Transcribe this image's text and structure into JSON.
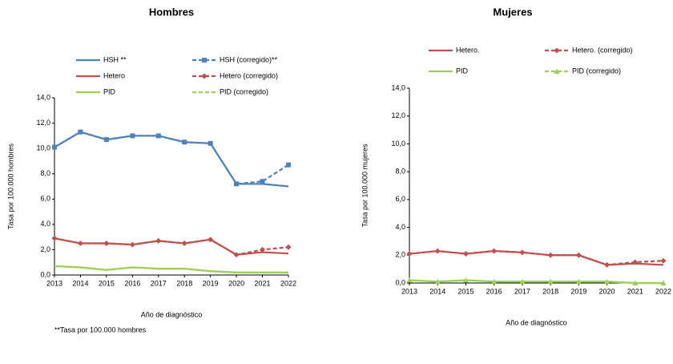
{
  "chart_data": [
    {
      "type": "line",
      "title": "Hombres",
      "xlabel": "Año de diagnóstico",
      "ylabel": "Tasa por 100.000 hombres",
      "categories": [
        "2013",
        "2014",
        "2015",
        "2016",
        "2017",
        "2018",
        "2019",
        "2020",
        "2021",
        "2022"
      ],
      "ylim": [
        0,
        14
      ],
      "yticks": [
        {
          "value": 0,
          "label": "0,0"
        },
        {
          "value": 2,
          "label": "2,0"
        },
        {
          "value": 4,
          "label": "4,0"
        },
        {
          "value": 6,
          "label": "6,0"
        },
        {
          "value": 8,
          "label": "8,0"
        },
        {
          "value": 10,
          "label": "10,0"
        },
        {
          "value": 12,
          "label": "12,0"
        },
        {
          "value": 14,
          "label": "14,0"
        }
      ],
      "series": [
        {
          "name": "HSH (corregido)**",
          "color": "#4f81bd",
          "dashed": true,
          "marker": "square",
          "values": [
            10.1,
            11.3,
            10.7,
            11.0,
            11.0,
            10.5,
            10.4,
            7.2,
            7.4,
            8.7
          ]
        },
        {
          "name": "Hetero (corregido)",
          "color": "#c0504d",
          "dashed": true,
          "marker": "diamond",
          "values": [
            2.9,
            2.5,
            2.5,
            2.4,
            2.7,
            2.5,
            2.8,
            1.6,
            2.0,
            2.2
          ]
        },
        {
          "name": "PID (corregido)",
          "color": "#9bd055",
          "dashed": true,
          "values": [
            0.7,
            0.6,
            0.4,
            0.6,
            0.5,
            0.5,
            0.3,
            0.2,
            0.2,
            0.2
          ]
        },
        {
          "name": "HSH **",
          "color": "#4f81bd",
          "values": [
            10.1,
            11.3,
            10.7,
            11.0,
            11.0,
            10.5,
            10.4,
            7.2,
            7.2,
            7.0
          ]
        },
        {
          "name": "Hetero",
          "color": "#c0504d",
          "values": [
            2.9,
            2.5,
            2.5,
            2.4,
            2.7,
            2.5,
            2.8,
            1.6,
            1.8,
            1.7
          ]
        },
        {
          "name": "PID",
          "color": "#9bd055",
          "values": [
            0.7,
            0.6,
            0.4,
            0.6,
            0.5,
            0.5,
            0.3,
            0.2,
            0.2,
            0.2
          ]
        }
      ]
    },
    {
      "type": "line",
      "title": "Mujeres",
      "xlabel": "Año de diagnóstico",
      "ylabel": "Tasa por 100.000 mujeres",
      "categories": [
        "2013",
        "2014",
        "2015",
        "2016",
        "2017",
        "2018",
        "2019",
        "2020",
        "2021",
        "2022"
      ],
      "ylim": [
        0,
        14
      ],
      "yticks": [
        {
          "value": 0,
          "label": "0,0"
        },
        {
          "value": 2,
          "label": "2,0"
        },
        {
          "value": 4,
          "label": "4,0"
        },
        {
          "value": 6,
          "label": "6,0"
        },
        {
          "value": 8,
          "label": "8,0"
        },
        {
          "value": 10,
          "label": "10,0"
        },
        {
          "value": 12,
          "label": "12,0"
        },
        {
          "value": 14,
          "label": "14,0"
        }
      ],
      "series": [
        {
          "name": "Hetero. (corregido)",
          "color": "#c0504d",
          "dashed": true,
          "marker": "diamond",
          "values": [
            2.1,
            2.3,
            2.1,
            2.3,
            2.2,
            2.0,
            2.0,
            1.3,
            1.5,
            1.6
          ]
        },
        {
          "name": "PID (corregido)",
          "color": "#9bd055",
          "dashed": true,
          "marker": "triangle",
          "values": [
            0.2,
            0.1,
            0.2,
            0.1,
            0.1,
            0.1,
            0.1,
            0.1,
            0.0,
            0.0
          ]
        },
        {
          "name": "Hetero.",
          "color": "#c0504d",
          "values": [
            2.1,
            2.3,
            2.1,
            2.3,
            2.2,
            2.0,
            2.0,
            1.3,
            1.4,
            1.3
          ]
        },
        {
          "name": "PID",
          "color": "#9bd055",
          "values": [
            0.2,
            0.1,
            0.2,
            0.1,
            0.1,
            0.1,
            0.1,
            0.1,
            0.0,
            0.0
          ]
        }
      ]
    }
  ],
  "footnote": "**Tasa por 100.000 hombres"
}
